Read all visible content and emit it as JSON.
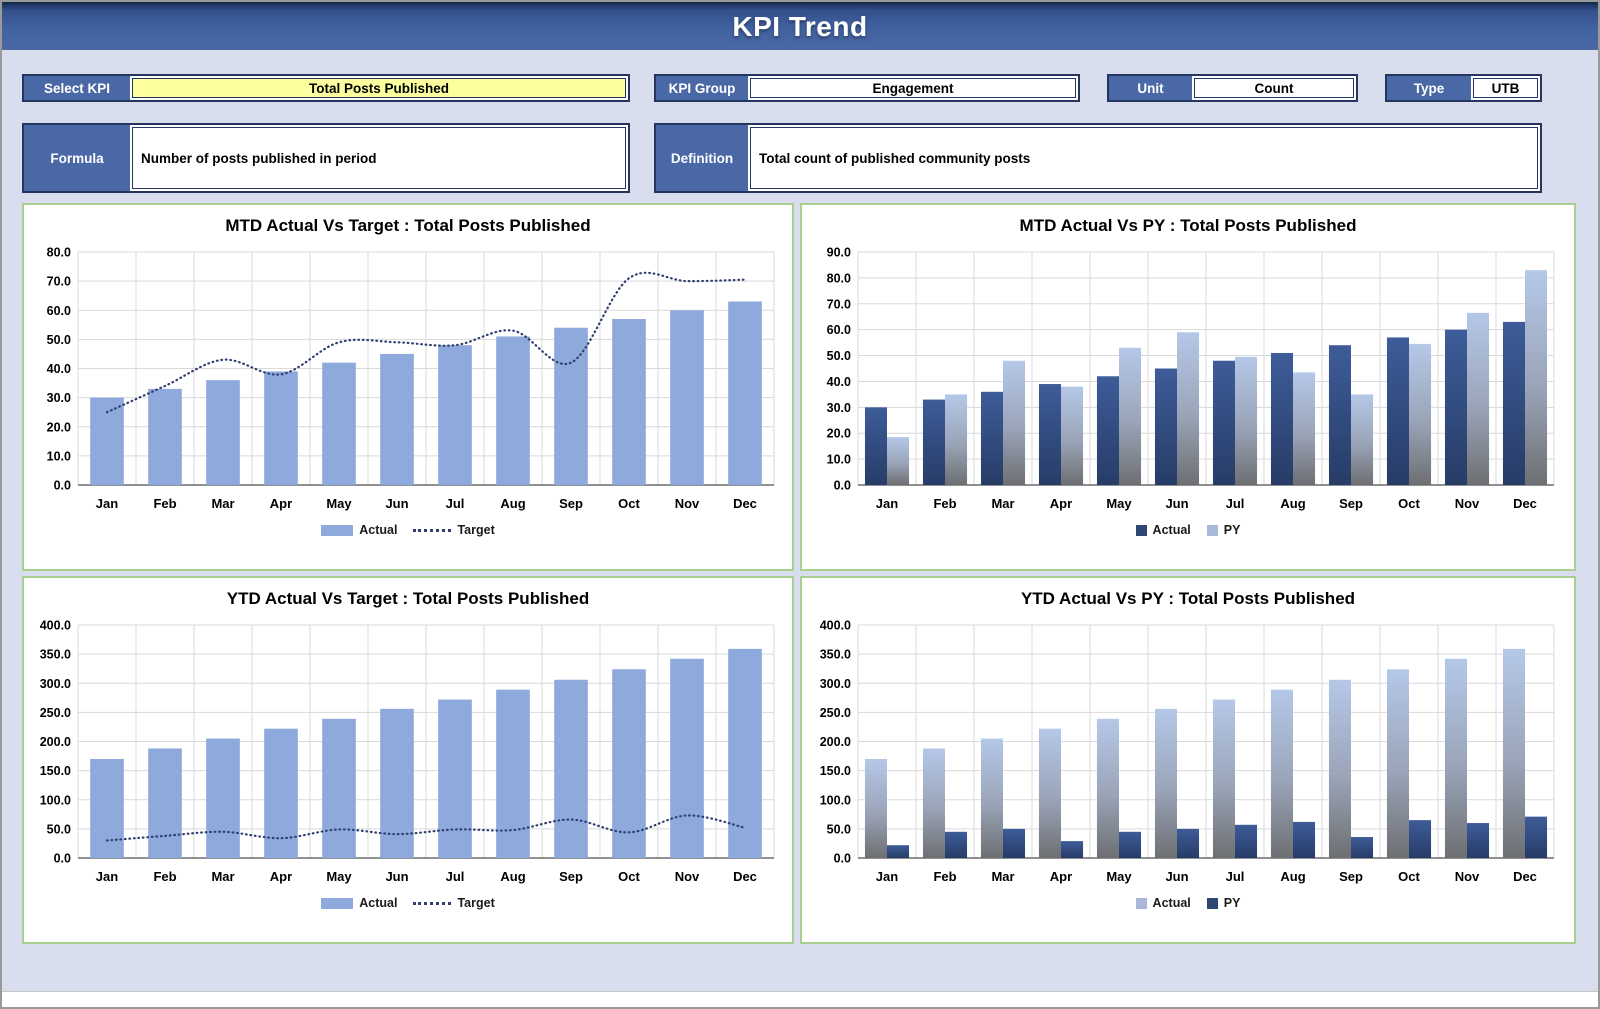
{
  "window": {
    "title": "KPI Trend"
  },
  "fields": {
    "select_kpi": {
      "label": "Select KPI",
      "value": "Total Posts Published"
    },
    "kpi_group": {
      "label": "KPI Group",
      "value": "Engagement"
    },
    "unit": {
      "label": "Unit",
      "value": "Count"
    },
    "type": {
      "label": "Type",
      "value": "UTB"
    },
    "formula": {
      "label": "Formula",
      "value": "Number of posts published in period"
    },
    "definition": {
      "label": "Definition",
      "value": "Total count of published community posts"
    }
  },
  "colors": {
    "page_bg": "#D9DEEF",
    "header_blue": "#4A68A6",
    "label_blue": "#4A68A6",
    "border_navy": "#24365F",
    "select_yellow": "#FDFF9E",
    "panel_border_green": "#A9D08E",
    "bar_light": "#8EA9DB",
    "bar_navy_top": "#3E5C99",
    "bar_navy_bottom": "#273C67",
    "bar_navy_legend": "#2E4876",
    "bar_fade_top": "#B5C8E8",
    "bar_fade_bottom": "#6D6F72",
    "bar_fade_legend": "#A9B8D8",
    "target_line": "#2F4070",
    "grid": "#D9D9D9",
    "axis": "#6B6B6B"
  },
  "categories": [
    "Jan",
    "Feb",
    "Mar",
    "Apr",
    "May",
    "Jun",
    "Jul",
    "Aug",
    "Sep",
    "Oct",
    "Nov",
    "Dec"
  ],
  "chart_data": [
    {
      "type": "bar+line",
      "title": "MTD Actual Vs Target : Total Posts Published",
      "categories": [
        "Jan",
        "Feb",
        "Mar",
        "Apr",
        "May",
        "Jun",
        "Jul",
        "Aug",
        "Sep",
        "Oct",
        "Nov",
        "Dec"
      ],
      "series": [
        {
          "name": "Actual",
          "kind": "bar",
          "style": "light",
          "values": [
            30,
            33,
            36,
            39,
            42,
            45,
            48,
            51,
            54,
            57,
            60,
            63
          ]
        },
        {
          "name": "Target",
          "kind": "line",
          "style": "dotted",
          "values": [
            25,
            34,
            43,
            38,
            49,
            49,
            48,
            53,
            42,
            71,
            70,
            70.5
          ]
        }
      ],
      "xlabel": "",
      "ylabel": "",
      "ylim": [
        0,
        80
      ],
      "ystep": 10,
      "grid": true,
      "legend_position": "bottom"
    },
    {
      "type": "grouped-bar",
      "title": "MTD Actual Vs PY : Total Posts Published",
      "categories": [
        "Jan",
        "Feb",
        "Mar",
        "Apr",
        "May",
        "Jun",
        "Jul",
        "Aug",
        "Sep",
        "Oct",
        "Nov",
        "Dec"
      ],
      "series": [
        {
          "name": "Actual",
          "kind": "bar",
          "style": "navy",
          "values": [
            30,
            33,
            36,
            39,
            42,
            45,
            48,
            51,
            54,
            57,
            60,
            63
          ]
        },
        {
          "name": "PY",
          "kind": "bar",
          "style": "fade",
          "values": [
            18.5,
            35,
            48,
            38,
            53,
            59,
            49.5,
            43.5,
            35,
            54.5,
            66.5,
            83
          ]
        }
      ],
      "xlabel": "",
      "ylabel": "",
      "ylim": [
        0,
        90
      ],
      "ystep": 10,
      "grid": true,
      "legend_position": "bottom"
    },
    {
      "type": "bar+line",
      "title": "YTD Actual Vs Target : Total Posts Published",
      "categories": [
        "Jan",
        "Feb",
        "Mar",
        "Apr",
        "May",
        "Jun",
        "Jul",
        "Aug",
        "Sep",
        "Oct",
        "Nov",
        "Dec"
      ],
      "series": [
        {
          "name": "Actual",
          "kind": "bar",
          "style": "light",
          "values": [
            170,
            188,
            205,
            222,
            239,
            256,
            272,
            289,
            306,
            324,
            342,
            359
          ]
        },
        {
          "name": "Target",
          "kind": "line",
          "style": "dotted",
          "values": [
            30,
            38,
            45,
            34,
            49,
            41,
            49,
            48,
            66,
            44,
            73,
            52
          ]
        }
      ],
      "xlabel": "",
      "ylabel": "",
      "ylim": [
        0,
        400
      ],
      "ystep": 50,
      "grid": true,
      "legend_position": "bottom"
    },
    {
      "type": "grouped-bar",
      "title": "YTD Actual Vs PY : Total Posts Published",
      "categories": [
        "Jan",
        "Feb",
        "Mar",
        "Apr",
        "May",
        "Jun",
        "Jul",
        "Aug",
        "Sep",
        "Oct",
        "Nov",
        "Dec"
      ],
      "series": [
        {
          "name": "Actual",
          "kind": "bar",
          "style": "fade",
          "values": [
            170,
            188,
            205,
            222,
            239,
            256,
            272,
            289,
            306,
            324,
            342,
            359
          ]
        },
        {
          "name": "PY",
          "kind": "bar",
          "style": "navy",
          "values": [
            22,
            45,
            50,
            29,
            45,
            50,
            57,
            62,
            36,
            65,
            60,
            71
          ]
        }
      ],
      "xlabel": "",
      "ylabel": "",
      "ylim": [
        0,
        400
      ],
      "ystep": 50,
      "grid": true,
      "legend_position": "bottom"
    }
  ]
}
